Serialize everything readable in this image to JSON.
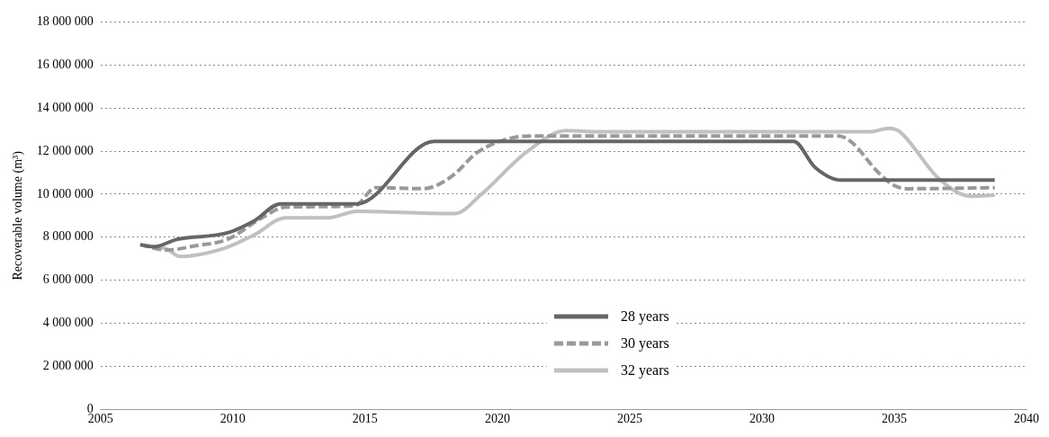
{
  "chart_data": {
    "type": "line",
    "ylabel": "Recoverable volume (m³)",
    "xlim": [
      2005,
      2040
    ],
    "xticks": [
      2005,
      2010,
      2015,
      2020,
      2025,
      2030,
      2035,
      2040
    ],
    "ylim": [
      0,
      18000000
    ],
    "yticks": [
      {
        "value": 0,
        "label": "0"
      },
      {
        "value": 2000000,
        "label": "2 000 000"
      },
      {
        "value": 4000000,
        "label": "4 000 000"
      },
      {
        "value": 6000000,
        "label": "6 000 000"
      },
      {
        "value": 8000000,
        "label": "8 000 000"
      },
      {
        "value": 10000000,
        "label": "10 000 000"
      },
      {
        "value": 12000000,
        "label": "12 000 000"
      },
      {
        "value": 14000000,
        "label": "14 000 000"
      },
      {
        "value": 16000000,
        "label": "16 000 000"
      },
      {
        "value": 18000000,
        "label": "18 000 000"
      }
    ],
    "grid": "y",
    "legend": "bottom",
    "marker": "none",
    "series": [
      {
        "name": "28 years",
        "color": "#666666",
        "line_style": "solid",
        "x": [
          2006.5,
          2007.0,
          2007.9,
          2009.8,
          2010.8,
          2011.8,
          2014.7,
          2017.6,
          2031.2,
          2032.0,
          2033.0,
          2038.8
        ],
        "values": [
          7650000,
          7550000,
          7900000,
          8200000,
          8750000,
          9550000,
          9550000,
          12450000,
          12450000,
          11250000,
          10650000,
          10650000
        ]
      },
      {
        "name": "30 years",
        "color": "#999999",
        "line_style": "dashed",
        "x": [
          2006.5,
          2007.5,
          2008.6,
          2009.8,
          2011.1,
          2012.0,
          2014.6,
          2015.4,
          2017.2,
          2017.7,
          2018.4,
          2019.2,
          2020.5,
          2021.5,
          2032.9,
          2033.4,
          2034.4,
          2035.0,
          2035.5,
          2038.8
        ],
        "values": [
          7650000,
          7400000,
          7600000,
          7900000,
          8900000,
          9400000,
          9450000,
          10300000,
          10250000,
          10400000,
          10950000,
          11900000,
          12600000,
          12700000,
          12700000,
          12400000,
          11000000,
          10400000,
          10250000,
          10300000
        ]
      },
      {
        "name": "32 years",
        "color": "#c0c0c0",
        "line_style": "solid",
        "x": [
          2006.5,
          2007.5,
          2008.0,
          2009.6,
          2010.8,
          2012.0,
          2013.6,
          2014.7,
          2018.1,
          2018.4,
          2019.4,
          2021.1,
          2022.6,
          2023.6,
          2034.1,
          2034.8,
          2035.2,
          2036.7,
          2037.9,
          2038.8
        ],
        "values": [
          7650000,
          7450000,
          7100000,
          7450000,
          8100000,
          8900000,
          8900000,
          9200000,
          9100000,
          9100000,
          10000000,
          11950000,
          12950000,
          12900000,
          12900000,
          13050000,
          12900000,
          10700000,
          9900000,
          9950000
        ]
      }
    ]
  }
}
